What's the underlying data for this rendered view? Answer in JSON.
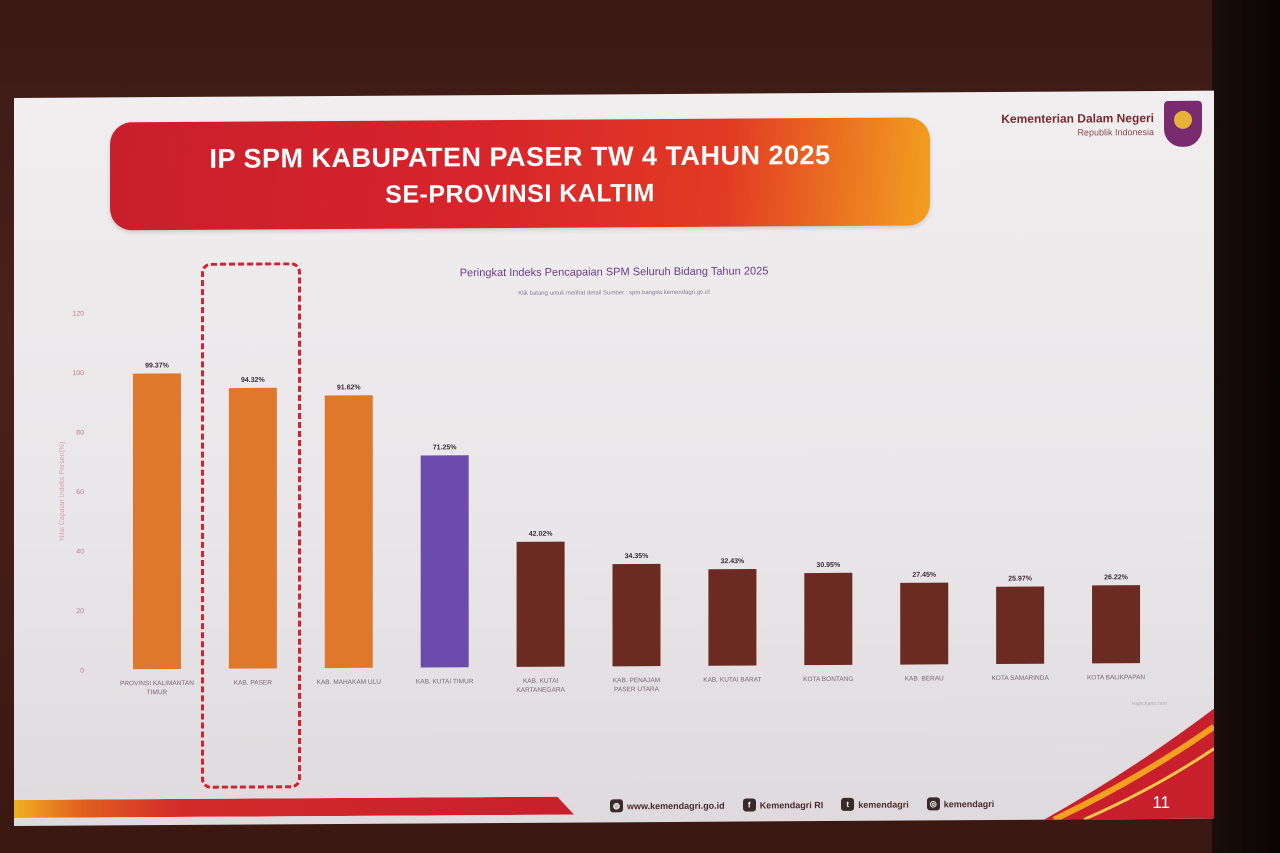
{
  "slide": {
    "title_line1": "IP SPM KABUPATEN PASER TW 4 TAHUN 2025",
    "title_line2": "SE-PROVINSI KALTIM",
    "ministry_name": "Kementerian Dalam Negeri",
    "ministry_sub": "Republik Indonesia",
    "page_number": "11"
  },
  "footer": {
    "website": "www.kemendagri.go.id",
    "facebook": "Kemendagri RI",
    "twitter": "kemendagri",
    "instagram": "kemendagri"
  },
  "chart_data": {
    "type": "bar",
    "title": "Peringkat Indeks Pencapaian SPM Seluruh Bidang Tahun 2025",
    "subtitle": "Klik batang untuk melihat detail Sumber : spm.bangda.kemendagri.go.id",
    "ylabel": "Nilai Capaian Indeks Persen(%)",
    "ylim": [
      0,
      120
    ],
    "yticks": [
      "0",
      "20",
      "40",
      "60",
      "80",
      "100",
      "120"
    ],
    "categories": [
      "PROVINSI KALIMANTAN TIMUR",
      "KAB. PASER",
      "KAB. MAHAKAM ULU",
      "KAB. KUTAI TIMUR",
      "KAB. KUTAI KARTANEGARA",
      "KAB. PENAJAM PASER UTARA",
      "KAB. KUTAI BARAT",
      "KOTA BONTANG",
      "KAB. BERAU",
      "KOTA SAMARINDA",
      "KOTA BALIKPAPAN"
    ],
    "values": [
      99.37,
      94.32,
      91.62,
      71.25,
      42.02,
      34.35,
      32.43,
      30.95,
      27.45,
      25.97,
      26.22
    ],
    "value_labels": [
      "99.37%",
      "94.32%",
      "91.62%",
      "71.25%",
      "42.02%",
      "34.35%",
      "32.43%",
      "30.95%",
      "27.45%",
      "25.97%",
      "26.22%"
    ],
    "colors": [
      "#e0782c",
      "#e0782c",
      "#e0782c",
      "#6b4bab",
      "#6b2a22",
      "#6b2a22",
      "#6b2a22",
      "#6b2a22",
      "#6b2a22",
      "#6b2a22",
      "#6b2a22"
    ],
    "highlight": "KAB. PASER",
    "grid": false,
    "credit": "Highcharts.com"
  }
}
